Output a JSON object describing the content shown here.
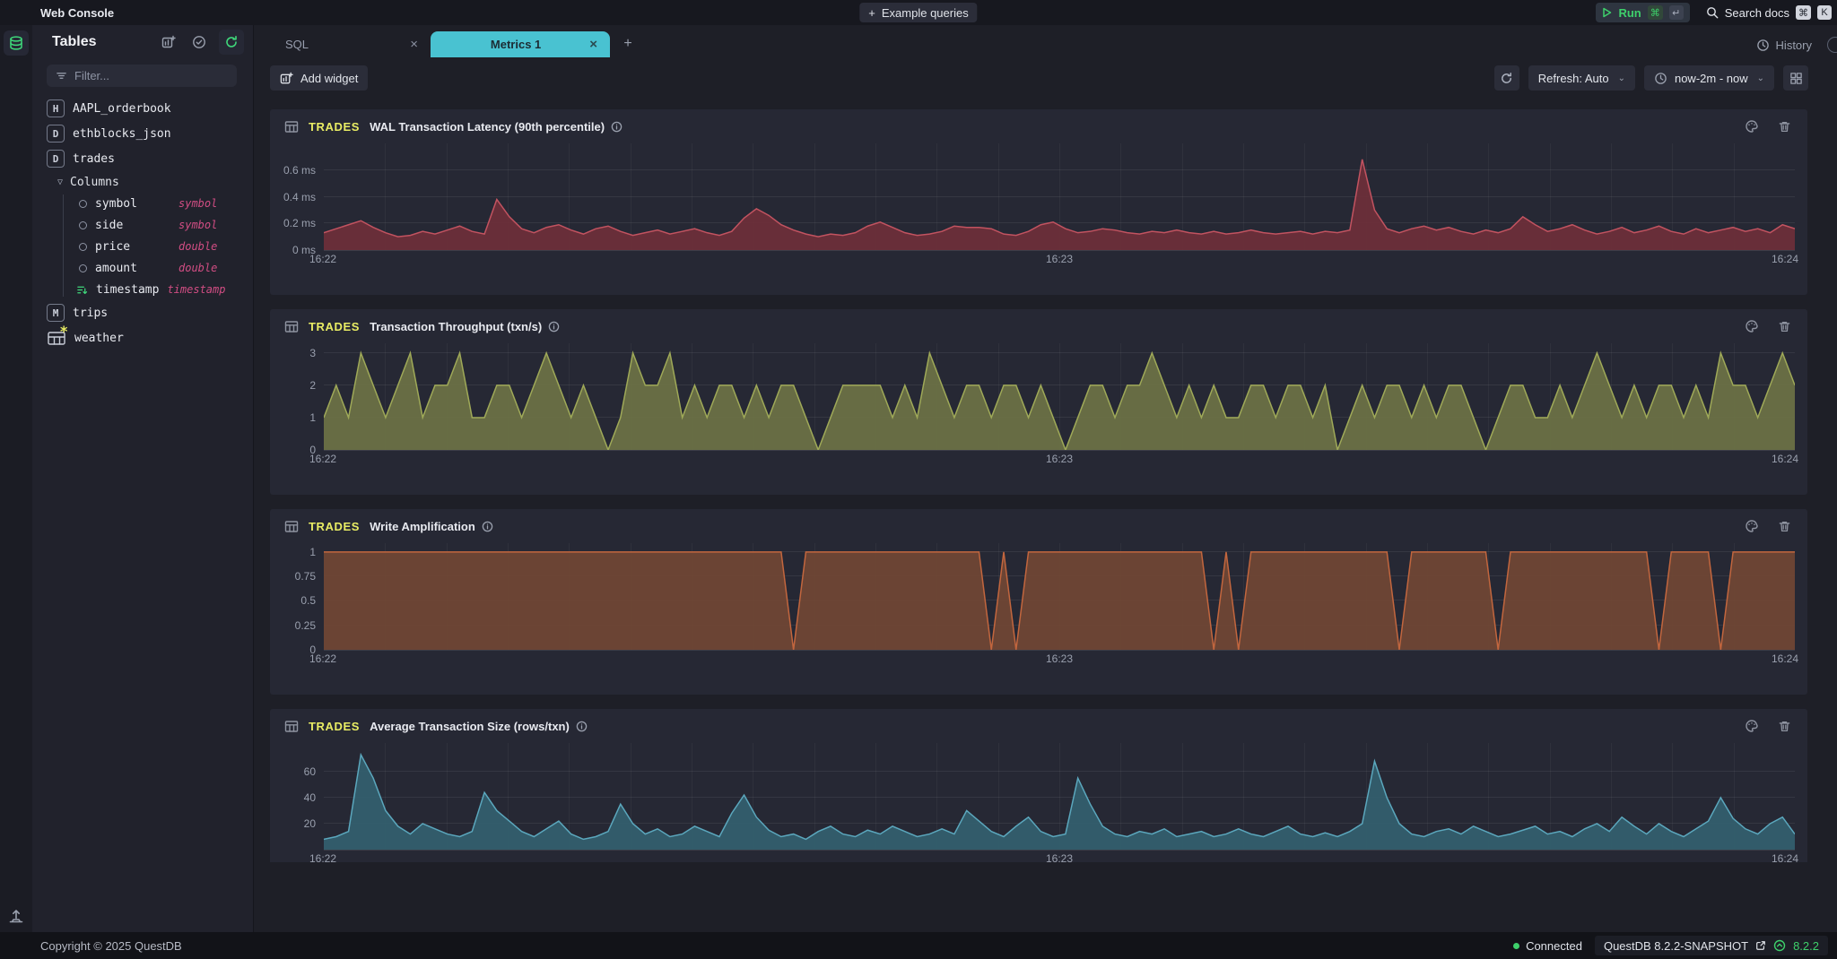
{
  "topbar": {
    "title": "Web Console",
    "example_queries": "Example queries",
    "run_label": "Run",
    "search_label": "Search docs"
  },
  "icons": {
    "plus": "+",
    "close": "×",
    "chevron_down": "⌄",
    "columns_chevron": "▽",
    "command_key": "⌘",
    "enter_key": "↵",
    "k_key": "K",
    "weather_star": "*"
  },
  "sidebar": {
    "heading": "Tables",
    "filter_placeholder": "Filter...",
    "tables": [
      {
        "badge": "H",
        "name": "AAPL_orderbook"
      },
      {
        "badge": "D",
        "name": "ethblocks_json"
      },
      {
        "badge": "D",
        "name": "trades"
      },
      {
        "badge": "M",
        "name": "trips"
      },
      {
        "badge": "",
        "name": "weather"
      }
    ],
    "columns_label": "Columns",
    "columns": [
      {
        "name": "symbol",
        "type": "symbol"
      },
      {
        "name": "side",
        "type": "symbol"
      },
      {
        "name": "price",
        "type": "double"
      },
      {
        "name": "amount",
        "type": "double"
      },
      {
        "name": "timestamp",
        "type": "timestamp"
      }
    ]
  },
  "tabs": {
    "sql": "SQL",
    "metrics": "Metrics 1",
    "history": "History"
  },
  "toolbar": {
    "add_widget": "Add widget",
    "refresh_mode": "Refresh: Auto",
    "time_range": "now-2m - now"
  },
  "statusbar": {
    "copyright": "Copyright © 2025 QuestDB",
    "connected": "Connected",
    "version": "QuestDB 8.2.2-SNAPSHOT",
    "version_tag": "8.2.2"
  },
  "colors": {
    "accent_cyan": "#49c2d1",
    "accent_green": "#3ed06b",
    "accent_yellow": "#e9ed64",
    "accent_pink": "#d14d83"
  },
  "chart_data": [
    {
      "type": "area",
      "table": "TRADES",
      "title": "WAL Transaction Latency (90th percentile)",
      "x_labels": [
        "16:22",
        "16:23",
        "16:24"
      ],
      "ymax": 0.8,
      "yticks": [
        {
          "v": 0,
          "label": "0 ms"
        },
        {
          "v": 0.2,
          "label": "0.2 ms"
        },
        {
          "v": 0.4,
          "label": "0.4 ms"
        },
        {
          "v": 0.6,
          "label": "0.6 ms"
        }
      ],
      "line": "#c25360",
      "fill": "#6e2f39",
      "values": [
        0.13,
        0.16,
        0.19,
        0.22,
        0.17,
        0.13,
        0.1,
        0.11,
        0.14,
        0.12,
        0.15,
        0.18,
        0.14,
        0.12,
        0.38,
        0.25,
        0.16,
        0.13,
        0.17,
        0.19,
        0.15,
        0.12,
        0.16,
        0.18,
        0.14,
        0.11,
        0.13,
        0.15,
        0.12,
        0.14,
        0.16,
        0.13,
        0.11,
        0.14,
        0.24,
        0.31,
        0.26,
        0.19,
        0.15,
        0.12,
        0.1,
        0.12,
        0.11,
        0.13,
        0.18,
        0.21,
        0.17,
        0.13,
        0.11,
        0.12,
        0.14,
        0.18,
        0.17,
        0.17,
        0.16,
        0.12,
        0.11,
        0.14,
        0.19,
        0.21,
        0.16,
        0.13,
        0.14,
        0.16,
        0.15,
        0.13,
        0.12,
        0.14,
        0.13,
        0.15,
        0.13,
        0.12,
        0.14,
        0.12,
        0.13,
        0.15,
        0.13,
        0.12,
        0.13,
        0.14,
        0.12,
        0.14,
        0.13,
        0.15,
        0.68,
        0.3,
        0.16,
        0.13,
        0.16,
        0.18,
        0.15,
        0.17,
        0.14,
        0.12,
        0.15,
        0.13,
        0.16,
        0.25,
        0.19,
        0.14,
        0.16,
        0.19,
        0.15,
        0.12,
        0.14,
        0.17,
        0.13,
        0.15,
        0.18,
        0.14,
        0.12,
        0.16,
        0.13,
        0.15,
        0.17,
        0.14,
        0.16,
        0.13,
        0.19,
        0.16
      ]
    },
    {
      "type": "area",
      "table": "TRADES",
      "title": "Transaction Throughput (txn/s)",
      "x_labels": [
        "16:22",
        "16:23",
        "16:24"
      ],
      "ymax": 3.3,
      "yticks": [
        {
          "v": 0,
          "label": "0"
        },
        {
          "v": 1,
          "label": "1"
        },
        {
          "v": 2,
          "label": "2"
        },
        {
          "v": 3,
          "label": "3"
        }
      ],
      "line": "#9fa958",
      "fill": "#6c7245",
      "values": [
        1,
        2,
        1,
        3,
        2,
        1,
        2,
        3,
        1,
        2,
        2,
        3,
        1,
        1,
        2,
        2,
        1,
        2,
        3,
        2,
        1,
        2,
        1,
        0,
        1,
        3,
        2,
        2,
        3,
        1,
        2,
        1,
        2,
        2,
        1,
        2,
        1,
        2,
        2,
        1,
        0,
        1,
        2,
        2,
        2,
        2,
        1,
        2,
        1,
        3,
        2,
        1,
        2,
        2,
        1,
        2,
        2,
        1,
        2,
        1,
        0,
        1,
        2,
        2,
        1,
        2,
        2,
        3,
        2,
        1,
        2,
        1,
        2,
        1,
        1,
        2,
        2,
        1,
        2,
        2,
        1,
        2,
        0,
        1,
        2,
        1,
        2,
        2,
        1,
        2,
        1,
        2,
        2,
        1,
        0,
        1,
        2,
        2,
        1,
        1,
        2,
        1,
        2,
        3,
        2,
        1,
        2,
        1,
        2,
        2,
        1,
        2,
        1,
        3,
        2,
        2,
        1,
        2,
        3,
        2
      ]
    },
    {
      "type": "area",
      "table": "TRADES",
      "title": "Write Amplification",
      "x_labels": [
        "16:22",
        "16:23",
        "16:24"
      ],
      "ymax": 1.09,
      "yticks": [
        {
          "v": 0,
          "label": "0"
        },
        {
          "v": 0.25,
          "label": "0.25"
        },
        {
          "v": 0.5,
          "label": "0.5"
        },
        {
          "v": 0.75,
          "label": "0.75"
        },
        {
          "v": 1,
          "label": "1"
        }
      ],
      "line": "#c2663e",
      "fill": "#714634",
      "values": [
        1,
        1,
        1,
        1,
        1,
        1,
        1,
        1,
        1,
        1,
        1,
        1,
        1,
        1,
        1,
        1,
        1,
        1,
        1,
        1,
        1,
        1,
        1,
        1,
        1,
        1,
        1,
        1,
        1,
        1,
        1,
        1,
        1,
        1,
        1,
        1,
        1,
        1,
        0,
        1,
        1,
        1,
        1,
        1,
        1,
        1,
        1,
        1,
        1,
        1,
        1,
        1,
        1,
        1,
        0,
        1,
        0,
        1,
        1,
        1,
        1,
        1,
        1,
        1,
        1,
        1,
        1,
        1,
        1,
        1,
        1,
        1,
        0,
        1,
        0,
        1,
        1,
        1,
        1,
        1,
        1,
        1,
        1,
        1,
        1,
        1,
        1,
        0,
        1,
        1,
        1,
        1,
        1,
        1,
        1,
        0,
        1,
        1,
        1,
        1,
        1,
        1,
        1,
        1,
        1,
        1,
        1,
        1,
        0,
        1,
        1,
        1,
        1,
        0,
        1,
        1,
        1,
        1,
        1,
        1
      ]
    },
    {
      "type": "area",
      "table": "TRADES",
      "title": "Average Transaction Size (rows/txn)",
      "x_labels": [
        "16:22",
        "16:23",
        "16:24"
      ],
      "ymax": 82,
      "yticks": [
        {
          "v": 20,
          "label": "20"
        },
        {
          "v": 40,
          "label": "40"
        },
        {
          "v": 60,
          "label": "60"
        }
      ],
      "line": "#5ba7bd",
      "fill": "#33606f",
      "values": [
        8,
        10,
        14,
        73,
        55,
        30,
        18,
        12,
        20,
        16,
        12,
        10,
        14,
        44,
        30,
        22,
        14,
        10,
        16,
        22,
        12,
        8,
        10,
        14,
        35,
        20,
        12,
        16,
        10,
        12,
        18,
        14,
        10,
        28,
        42,
        25,
        15,
        10,
        12,
        8,
        14,
        18,
        12,
        10,
        15,
        12,
        18,
        14,
        10,
        12,
        16,
        12,
        30,
        22,
        14,
        10,
        18,
        25,
        14,
        10,
        12,
        55,
        35,
        18,
        12,
        10,
        14,
        12,
        16,
        10,
        12,
        14,
        10,
        12,
        16,
        12,
        10,
        14,
        18,
        12,
        10,
        13,
        10,
        14,
        20,
        68,
        40,
        20,
        12,
        10,
        14,
        16,
        12,
        18,
        14,
        10,
        12,
        15,
        18,
        12,
        14,
        10,
        16,
        20,
        14,
        25,
        18,
        12,
        20,
        14,
        10,
        16,
        22,
        40,
        24,
        16,
        12,
        20,
        25,
        12
      ]
    }
  ]
}
